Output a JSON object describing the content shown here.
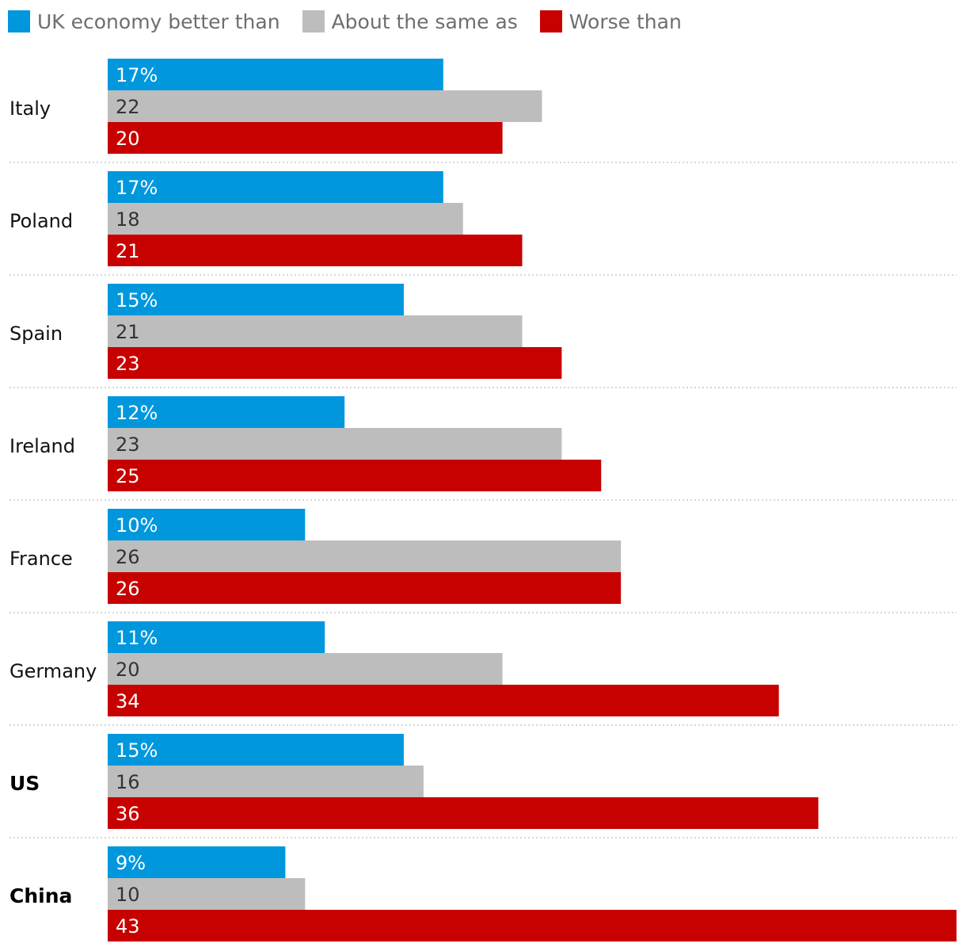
{
  "chart_data": {
    "type": "bar",
    "orientation": "horizontal",
    "categories": [
      "Italy",
      "Poland",
      "Spain",
      "Ireland",
      "France",
      "Germany",
      "US",
      "China"
    ],
    "emphasized_categories": [
      "US",
      "China"
    ],
    "series": [
      {
        "name": "UK economy better than",
        "color": "#0097dd",
        "values": [
          17,
          17,
          15,
          12,
          10,
          11,
          15,
          9
        ],
        "labels": [
          "17%",
          "17%",
          "15%",
          "12%",
          "10%",
          "11%",
          "15%",
          "9%"
        ],
        "label_color": "#ffffff"
      },
      {
        "name": "About the same as",
        "color": "#bdbdbd",
        "values": [
          22,
          18,
          21,
          23,
          26,
          20,
          16,
          10
        ],
        "labels": [
          "22",
          "18",
          "21",
          "23",
          "26",
          "20",
          "16",
          "10"
        ],
        "label_color": "#333333"
      },
      {
        "name": "Worse than",
        "color": "#c70000",
        "values": [
          20,
          21,
          23,
          25,
          26,
          34,
          36,
          43
        ],
        "labels": [
          "20",
          "21",
          "23",
          "25",
          "26",
          "34",
          "36",
          "43"
        ],
        "label_color": "#ffffff"
      }
    ],
    "xlim": [
      0,
      43
    ],
    "legend_position": "top-left",
    "grid": false,
    "separator_style": "dotted"
  }
}
